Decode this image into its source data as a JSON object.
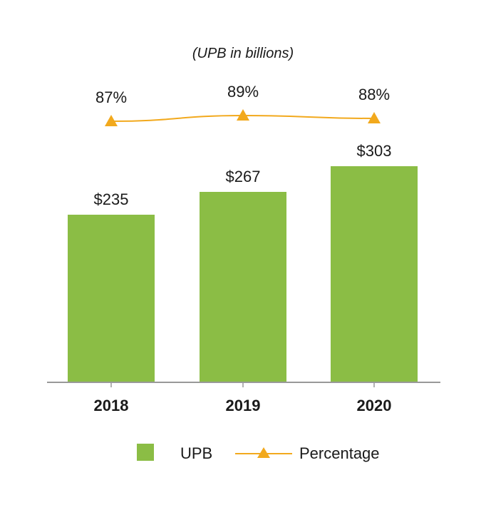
{
  "chart_data": {
    "type": "bar",
    "subtitle": "(UPB in billions)",
    "categories": [
      "2018",
      "2019",
      "2020"
    ],
    "series": [
      {
        "name": "UPB",
        "type": "bar",
        "values": [
          235,
          267,
          303
        ],
        "labels": [
          "$235",
          "$267",
          "$303"
        ],
        "color": "#8bbd45"
      },
      {
        "name": "Percentage",
        "type": "line",
        "marker": "triangle",
        "values": [
          87,
          89,
          88
        ],
        "labels": [
          "87%",
          "89%",
          "88%"
        ],
        "color": "#f2a91d"
      }
    ],
    "ylim_bar": [
      0,
      420
    ],
    "ylim_line": [
      80,
      100
    ],
    "grid": false,
    "legend": "bottom-center",
    "axis_color": "#999999"
  }
}
